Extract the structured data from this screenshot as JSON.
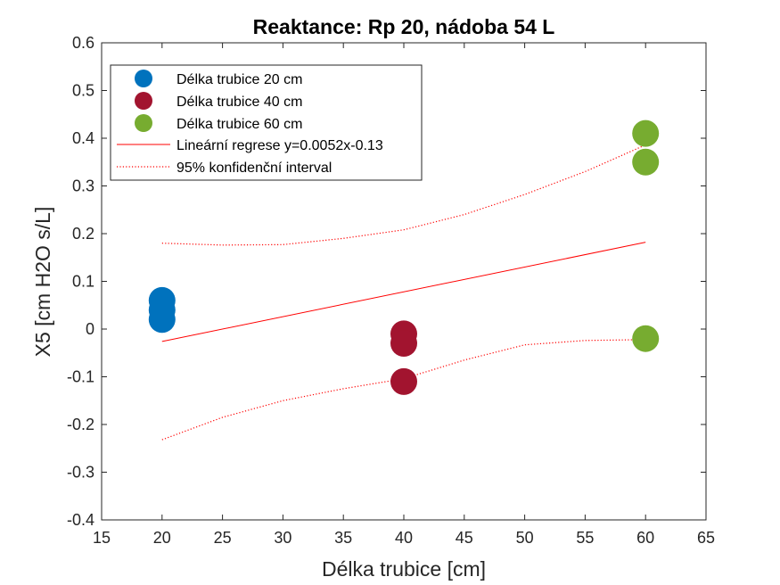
{
  "chart_data": {
    "type": "scatter",
    "title": "Reaktance: Rp 20, nádoba 54 L",
    "xlabel": "Délka trubice [cm]",
    "ylabel": "X5 [cm H2O s/L]",
    "xlim": [
      15,
      65
    ],
    "ylim": [
      -0.4,
      0.6
    ],
    "xticks": [
      "15",
      "20",
      "25",
      "30",
      "35",
      "40",
      "45",
      "50",
      "55",
      "60",
      "65"
    ],
    "yticks": [
      "-0.4",
      "-0.3",
      "-0.2",
      "-0.1",
      "0",
      "0.1",
      "0.2",
      "0.3",
      "0.4",
      "0.5",
      "0.6"
    ],
    "grid": false,
    "legend_position": "top-left",
    "series": [
      {
        "name": "Délka trubice 20 cm",
        "color": "#0072BD",
        "x": [
          20,
          20,
          20
        ],
        "y": [
          0.06,
          0.04,
          0.02
        ]
      },
      {
        "name": "Délka trubice 40 cm",
        "color": "#A2142F",
        "x": [
          40,
          40,
          40
        ],
        "y": [
          -0.01,
          -0.03,
          -0.11
        ]
      },
      {
        "name": "Délka trubice 60 cm",
        "color": "#77AC30",
        "x": [
          60,
          60,
          60
        ],
        "y": [
          0.41,
          0.35,
          -0.02
        ]
      }
    ],
    "regression": {
      "name": "Lineární regrese y=0.0052x-0.13",
      "color": "#FF0000",
      "x": [
        20,
        60
      ],
      "y": [
        -0.026,
        0.182
      ]
    },
    "confidence": {
      "name": "95% konfidenční interval",
      "color": "#FF0000",
      "x": [
        20,
        25,
        30,
        35,
        40,
        45,
        50,
        55,
        60
      ],
      "upper": [
        0.18,
        0.176,
        0.177,
        0.19,
        0.208,
        0.24,
        0.282,
        0.33,
        0.386
      ],
      "lower": [
        -0.232,
        -0.185,
        -0.15,
        -0.125,
        -0.104,
        -0.065,
        -0.033,
        -0.024,
        -0.022
      ]
    }
  }
}
